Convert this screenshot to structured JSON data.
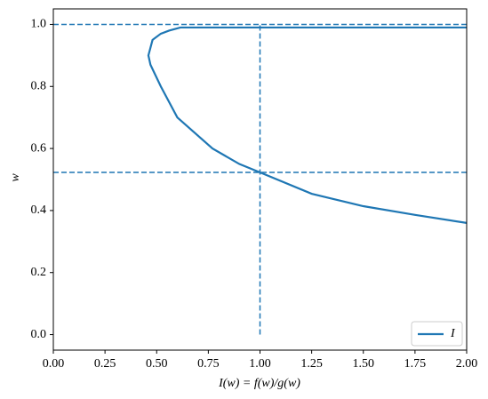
{
  "chart_data": {
    "type": "line",
    "xlabel": "I(w) = f(w)/g(w)",
    "ylabel": "w",
    "x": [
      2.0,
      1.75,
      1.5,
      1.25,
      1.0,
      0.9,
      0.77,
      0.6,
      0.52,
      0.47,
      0.46,
      0.48,
      0.52,
      0.56,
      0.615,
      2.0
    ],
    "series": [
      {
        "name": "I",
        "color": "#1f77b4",
        "values": [
          0.36,
          0.386,
          0.414,
          0.454,
          0.523,
          0.55,
          0.6,
          0.7,
          0.8,
          0.87,
          0.9,
          0.95,
          0.97,
          0.98,
          0.99,
          0.99
        ]
      }
    ],
    "hlines": [
      1.0,
      0.523
    ],
    "vline": {
      "x": 1.0,
      "ymin": 0,
      "ymax": 1.0
    },
    "xlim": [
      0,
      2
    ],
    "ylim": [
      -0.05,
      1.05
    ],
    "xticks": [
      {
        "value": 0,
        "label": "0.00"
      },
      {
        "value": 0.25,
        "label": "0.25"
      },
      {
        "value": 0.5,
        "label": "0.50"
      },
      {
        "value": 0.75,
        "label": "0.75"
      },
      {
        "value": 1,
        "label": "1.00"
      },
      {
        "value": 1.25,
        "label": "1.25"
      },
      {
        "value": 1.5,
        "label": "1.50"
      },
      {
        "value": 1.75,
        "label": "1.75"
      },
      {
        "value": 2,
        "label": "2.00"
      }
    ],
    "yticks": [
      {
        "value": 0,
        "label": "0.0"
      },
      {
        "value": 0.2,
        "label": "0.2"
      },
      {
        "value": 0.4,
        "label": "0.4"
      },
      {
        "value": 0.6,
        "label": "0.6"
      },
      {
        "value": 0.8,
        "label": "0.8"
      },
      {
        "value": 1,
        "label": "1.0"
      }
    ],
    "legend": "lower right",
    "grid": false
  }
}
